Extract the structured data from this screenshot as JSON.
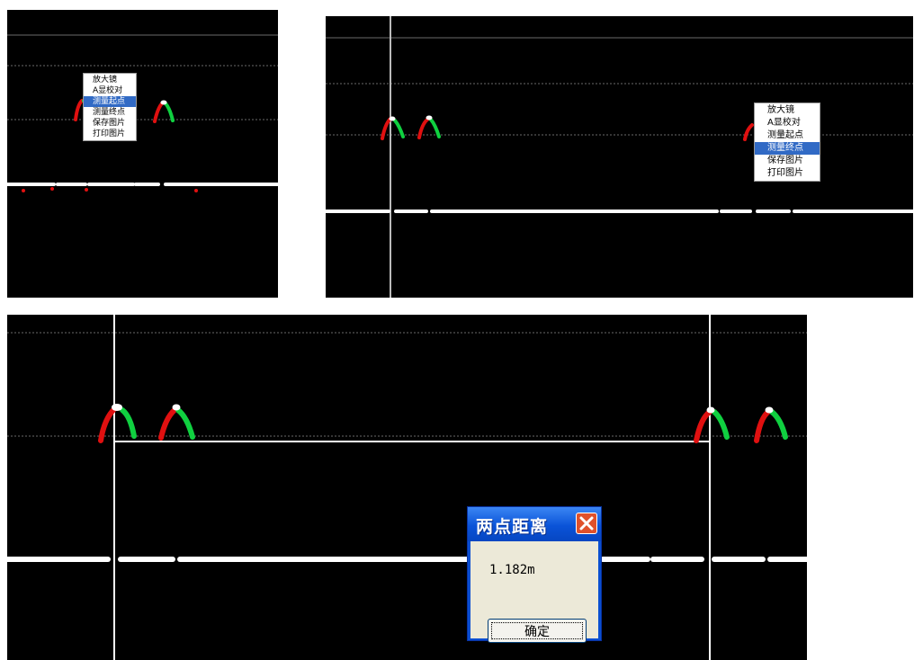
{
  "panel1": {
    "context_menu": {
      "items": [
        "放大镜",
        "A显校对",
        "测量起点",
        "测量终点",
        "保存图片",
        "打印图片"
      ],
      "selected_index": 2
    }
  },
  "panel2": {
    "context_menu": {
      "items": [
        "放大镜",
        "A显校对",
        "测量起点",
        "测量终点",
        "保存图片",
        "打印图片"
      ],
      "selected_index": 3
    }
  },
  "panel3": {
    "dialog": {
      "title": "两点距离",
      "value": "1.182m",
      "ok_label": "确定"
    }
  },
  "colors": {
    "background": "#000000",
    "trace_red": "#e01010",
    "trace_green": "#10d040",
    "cursor_line": "#ffffff",
    "dashed_grid": "#6a6a6a",
    "menu_highlight": "#316ac5"
  }
}
